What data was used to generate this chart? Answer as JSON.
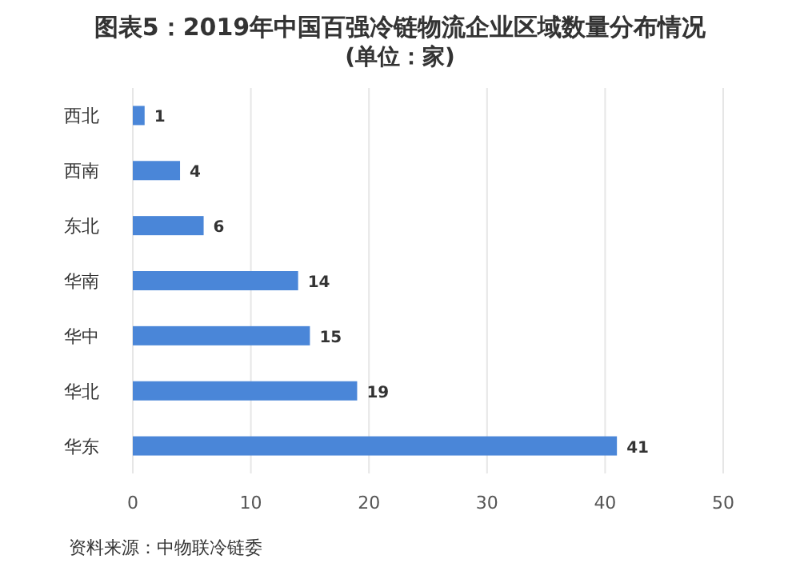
{
  "chart_data": {
    "type": "bar",
    "orientation": "horizontal",
    "title": "图表5：2019年中国百强冷链物流企业区域数量分布情况",
    "subtitle": "(单位：家)",
    "categories": [
      "西北",
      "西南",
      "东北",
      "华南",
      "华中",
      "华北",
      "华东"
    ],
    "values": [
      1,
      4,
      6,
      14,
      15,
      19,
      41
    ],
    "color": "#4a86d8",
    "xlim": [
      0,
      50
    ],
    "xticks": [
      0,
      10,
      20,
      30,
      40,
      50
    ],
    "grid": "x",
    "data_labels": true,
    "annotations": [
      "资料来源：中物联冷链委"
    ]
  }
}
